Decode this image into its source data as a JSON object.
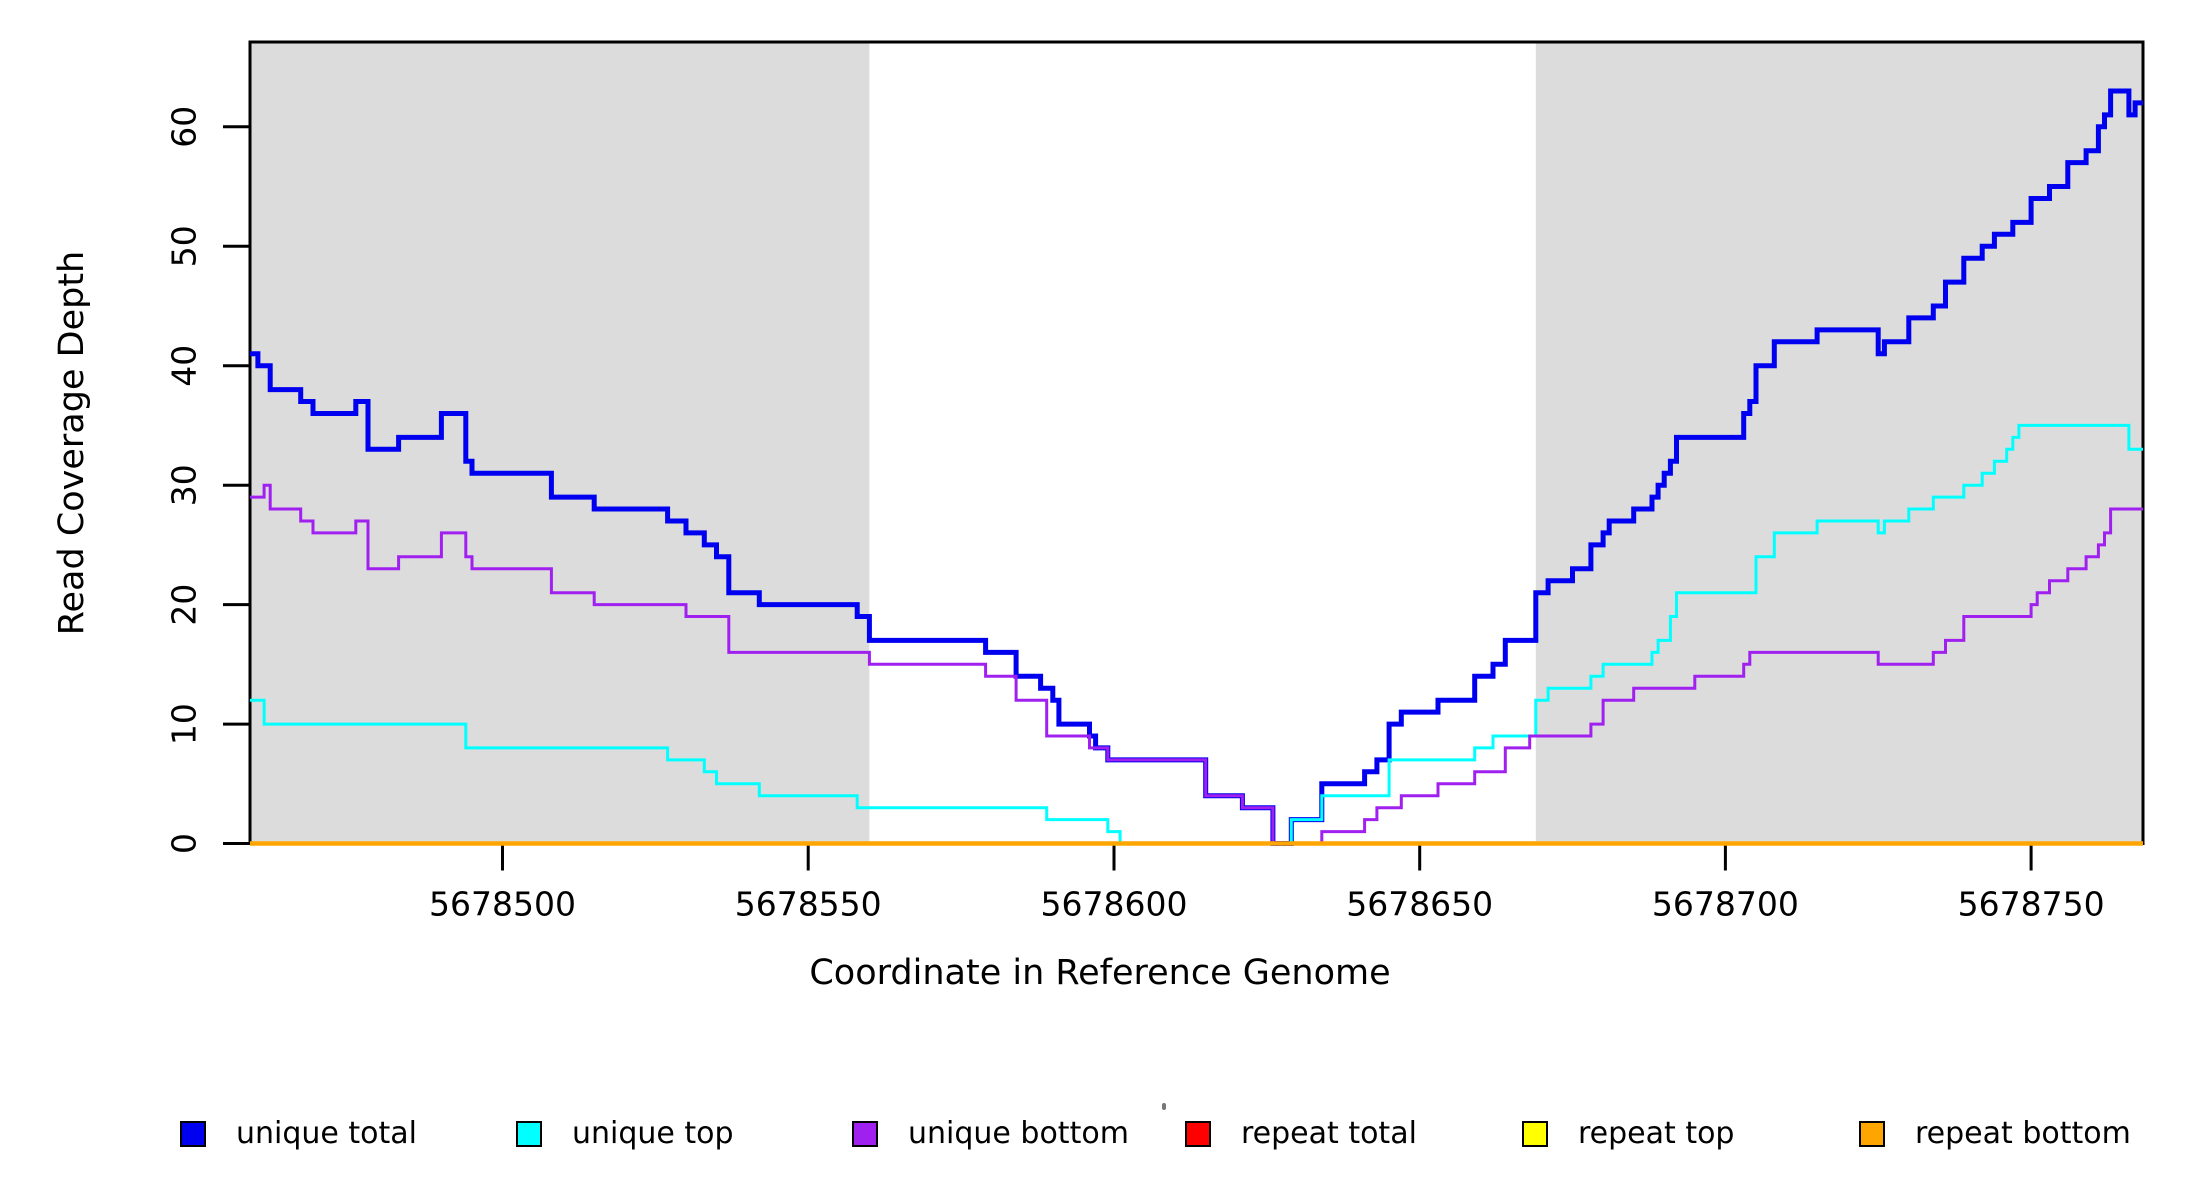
{
  "chart_data": {
    "type": "line",
    "subtype": "step-coverage-plot",
    "title": "",
    "xlabel": "Coordinate in Reference Genome",
    "ylabel": "Read Coverage Depth",
    "xlim": [
      5678458.7,
      5678768.3
    ],
    "ylim": [
      0,
      67.1
    ],
    "xticks": [
      5678500,
      5678550,
      5678600,
      5678650,
      5678700,
      5678750
    ],
    "yticks": [
      0,
      10,
      20,
      30,
      40,
      50,
      60
    ],
    "grid": false,
    "legend_position": "bottom",
    "background_color": "#ffffff",
    "shaded_color": "#dcdcdc",
    "shaded_regions": [
      {
        "x0": 5678458.7,
        "x1": 5678560
      },
      {
        "x0": 5678669,
        "x1": 5678768.3
      }
    ],
    "series": [
      {
        "name": "unique total",
        "color": "#0000f0",
        "width": 5,
        "points": [
          [
            5678459,
            41
          ],
          [
            5678460,
            40
          ],
          [
            5678462,
            38
          ],
          [
            5678467,
            37
          ],
          [
            5678469,
            36
          ],
          [
            5678476,
            37
          ],
          [
            5678478,
            33
          ],
          [
            5678483,
            34
          ],
          [
            5678490,
            36
          ],
          [
            5678494,
            32
          ],
          [
            5678495,
            31
          ],
          [
            5678508,
            29
          ],
          [
            5678515,
            28
          ],
          [
            5678527,
            27
          ],
          [
            5678530,
            26
          ],
          [
            5678533,
            25
          ],
          [
            5678535,
            24
          ],
          [
            5678537,
            21
          ],
          [
            5678542,
            20
          ],
          [
            5678558,
            19
          ],
          [
            5678560,
            17
          ],
          [
            5678579,
            16
          ],
          [
            5678584,
            14
          ],
          [
            5678588,
            13
          ],
          [
            5678590,
            12
          ],
          [
            5678591,
            10
          ],
          [
            5678596,
            9
          ],
          [
            5678597,
            8
          ],
          [
            5678599,
            7
          ],
          [
            5678615,
            4
          ],
          [
            5678621,
            3
          ],
          [
            5678626,
            0
          ],
          [
            5678629,
            2
          ],
          [
            5678634,
            5
          ],
          [
            5678641,
            6
          ],
          [
            5678643,
            7
          ],
          [
            5678645,
            10
          ],
          [
            5678647,
            11
          ],
          [
            5678653,
            12
          ],
          [
            5678659,
            14
          ],
          [
            5678662,
            15
          ],
          [
            5678664,
            17
          ],
          [
            5678669,
            21
          ],
          [
            5678671,
            22
          ],
          [
            5678675,
            23
          ],
          [
            5678678,
            25
          ],
          [
            5678680,
            26
          ],
          [
            5678681,
            27
          ],
          [
            5678685,
            28
          ],
          [
            5678688,
            29
          ],
          [
            5678689,
            30
          ],
          [
            5678690,
            31
          ],
          [
            5678691,
            32
          ],
          [
            5678692,
            34
          ],
          [
            5678703,
            36
          ],
          [
            5678704,
            37
          ],
          [
            5678705,
            40
          ],
          [
            5678708,
            42
          ],
          [
            5678715,
            43
          ],
          [
            5678725,
            41
          ],
          [
            5678726,
            42
          ],
          [
            5678730,
            44
          ],
          [
            5678734,
            45
          ],
          [
            5678736,
            47
          ],
          [
            5678739,
            49
          ],
          [
            5678742,
            50
          ],
          [
            5678744,
            51
          ],
          [
            5678747,
            52
          ],
          [
            5678750,
            54
          ],
          [
            5678753,
            55
          ],
          [
            5678756,
            57
          ],
          [
            5678759,
            58
          ],
          [
            5678761,
            60
          ],
          [
            5678762,
            61
          ],
          [
            5678763,
            63
          ],
          [
            5678766,
            61
          ],
          [
            5678767,
            62
          ]
        ]
      },
      {
        "name": "unique top",
        "color": "#00ffff",
        "width": 3,
        "points": [
          [
            5678459,
            12
          ],
          [
            5678461,
            10
          ],
          [
            5678494,
            8
          ],
          [
            5678527,
            7
          ],
          [
            5678533,
            6
          ],
          [
            5678535,
            5
          ],
          [
            5678542,
            4
          ],
          [
            5678558,
            3
          ],
          [
            5678589,
            2
          ],
          [
            5678599,
            1
          ],
          [
            5678601,
            0
          ],
          [
            5678629,
            2
          ],
          [
            5678634,
            4
          ],
          [
            5678645,
            7
          ],
          [
            5678659,
            8
          ],
          [
            5678662,
            9
          ],
          [
            5678669,
            12
          ],
          [
            5678671,
            13
          ],
          [
            5678678,
            14
          ],
          [
            5678680,
            15
          ],
          [
            5678688,
            16
          ],
          [
            5678689,
            17
          ],
          [
            5678691,
            19
          ],
          [
            5678692,
            21
          ],
          [
            5678705,
            24
          ],
          [
            5678708,
            26
          ],
          [
            5678715,
            27
          ],
          [
            5678725,
            26
          ],
          [
            5678726,
            27
          ],
          [
            5678730,
            28
          ],
          [
            5678734,
            29
          ],
          [
            5678739,
            30
          ],
          [
            5678742,
            31
          ],
          [
            5678744,
            32
          ],
          [
            5678746,
            33
          ],
          [
            5678747,
            34
          ],
          [
            5678748,
            35
          ],
          [
            5678766,
            33
          ]
        ]
      },
      {
        "name": "unique bottom",
        "color": "#a020f0",
        "width": 3,
        "points": [
          [
            5678459,
            29
          ],
          [
            5678461,
            30
          ],
          [
            5678462,
            28
          ],
          [
            5678467,
            27
          ],
          [
            5678469,
            26
          ],
          [
            5678476,
            27
          ],
          [
            5678478,
            23
          ],
          [
            5678483,
            24
          ],
          [
            5678490,
            26
          ],
          [
            5678494,
            24
          ],
          [
            5678495,
            23
          ],
          [
            5678508,
            21
          ],
          [
            5678515,
            20
          ],
          [
            5678530,
            19
          ],
          [
            5678537,
            16
          ],
          [
            5678560,
            15
          ],
          [
            5678579,
            14
          ],
          [
            5678584,
            12
          ],
          [
            5678589,
            9
          ],
          [
            5678596,
            8
          ],
          [
            5678599,
            7
          ],
          [
            5678615,
            4
          ],
          [
            5678621,
            3
          ],
          [
            5678626,
            0
          ],
          [
            5678634,
            1
          ],
          [
            5678641,
            2
          ],
          [
            5678643,
            3
          ],
          [
            5678647,
            4
          ],
          [
            5678653,
            5
          ],
          [
            5678659,
            6
          ],
          [
            5678664,
            8
          ],
          [
            5678668,
            9
          ],
          [
            5678678,
            10
          ],
          [
            5678680,
            12
          ],
          [
            5678685,
            13
          ],
          [
            5678695,
            14
          ],
          [
            5678703,
            15
          ],
          [
            5678704,
            16
          ],
          [
            5678725,
            15
          ],
          [
            5678734,
            16
          ],
          [
            5678736,
            17
          ],
          [
            5678739,
            19
          ],
          [
            5678750,
            20
          ],
          [
            5678751,
            21
          ],
          [
            5678753,
            22
          ],
          [
            5678756,
            23
          ],
          [
            5678759,
            24
          ],
          [
            5678761,
            25
          ],
          [
            5678762,
            26
          ],
          [
            5678763,
            28
          ]
        ]
      },
      {
        "name": "repeat total",
        "color": "#ff0000",
        "width": 3,
        "points": [
          [
            5678459,
            0
          ]
        ]
      },
      {
        "name": "repeat top",
        "color": "#ffff00",
        "width": 3,
        "points": [
          [
            5678459,
            0
          ]
        ]
      },
      {
        "name": "repeat bottom",
        "color": "#ffa500",
        "width": 4.5,
        "points": [
          [
            5678459,
            0
          ]
        ]
      }
    ],
    "legend": [
      {
        "label": "unique total",
        "color": "#0000f0"
      },
      {
        "label": "unique top",
        "color": "#00ffff"
      },
      {
        "label": "unique bottom",
        "color": "#a020f0"
      },
      {
        "label": "repeat total",
        "color": "#ff0000"
      },
      {
        "label": "repeat top",
        "color": "#ffff00"
      },
      {
        "label": "repeat bottom",
        "color": "#ffa500"
      }
    ]
  }
}
